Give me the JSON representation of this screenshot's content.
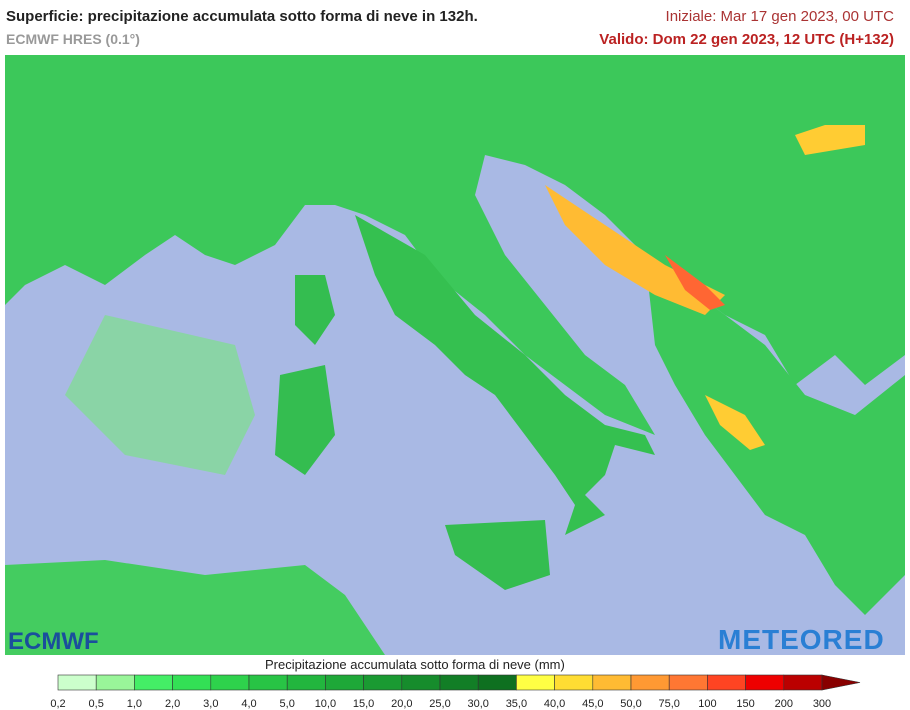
{
  "header": {
    "title": "Superficie: precipitazione accumulata sotto forma di neve in 132h.",
    "subtitle": "ECMWF HRES (0.1°)",
    "init": "Iniziale: Mar 17 gen 2023, 00 UTC",
    "valid": "Valido: Dom 22 gen 2023, 12 UTC (H+132)"
  },
  "logos": {
    "left": "ECMWF",
    "right": "METEORED"
  },
  "legend": {
    "title": "Precipitazione accumulata sotto forma di neve (mm)",
    "labels": [
      "0,2",
      "0,5",
      "1,0",
      "2,0",
      "3,0",
      "4,0",
      "5,0",
      "10,0",
      "15,0",
      "20,0",
      "25,0",
      "30,0",
      "35,0",
      "40,0",
      "45,0",
      "50,0",
      "75,0",
      "100",
      "150",
      "200",
      "300"
    ],
    "colors": [
      "#ccffcc",
      "#99f599",
      "#44ee66",
      "#33e055",
      "#2ed24c",
      "#28c445",
      "#22b63e",
      "#1ea838",
      "#1a9a32",
      "#168c2c",
      "#127e26",
      "#0e7020",
      "#ffff44",
      "#ffdd33",
      "#ffbb33",
      "#ff9933",
      "#ff7733",
      "#ff4422",
      "#ee0000",
      "#bb0000"
    ],
    "arrow_color": "#880000"
  }
}
